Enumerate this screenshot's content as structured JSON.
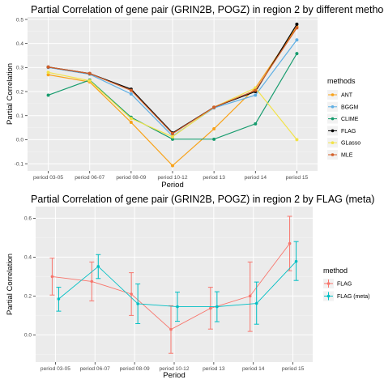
{
  "chart_data": [
    {
      "type": "line",
      "title": "Partial Correlation of gene pair (GRIN2B, POGZ) in region 2 by different methods",
      "xlabel": "Period",
      "ylabel": "Partial Correlation",
      "categories": [
        "period 03-05",
        "period 06-07",
        "period 08-09",
        "period 10-12",
        "period 13",
        "period 14",
        "period 15"
      ],
      "yticks": [
        "-0.1",
        "0.0",
        "0.1",
        "0.2",
        "0.3",
        "0.4",
        "0.5"
      ],
      "ylim": [
        -0.13,
        0.51
      ],
      "grid": true,
      "legend_title": "methods",
      "legend_position": "right",
      "series": [
        {
          "name": "ANT",
          "color": "#F8A31B",
          "values": [
            0.27,
            0.24,
            0.072,
            -0.108,
            0.045,
            0.215,
            0.47
          ]
        },
        {
          "name": "BGGM",
          "color": "#5FAFE4",
          "values": [
            0.3,
            0.272,
            0.19,
            0.015,
            0.132,
            0.185,
            0.415
          ]
        },
        {
          "name": "CLIME",
          "color": "#179C6E",
          "values": [
            0.185,
            0.248,
            0.093,
            0.002,
            0.002,
            0.066,
            0.358
          ]
        },
        {
          "name": "FLAG",
          "color": "#000000",
          "values": [
            0.302,
            0.275,
            0.21,
            0.028,
            0.135,
            0.2,
            0.48
          ]
        },
        {
          "name": "GLasso",
          "color": "#F2E34A",
          "values": [
            0.28,
            0.245,
            0.088,
            0.012,
            0.135,
            0.215,
            0.0
          ]
        },
        {
          "name": "MLE",
          "color": "#D3602A",
          "values": [
            0.302,
            0.275,
            0.205,
            0.025,
            0.135,
            0.205,
            0.465
          ]
        }
      ]
    },
    {
      "type": "line",
      "title": "Partial Correlation of gene pair (GRIN2B, POGZ) in region 2 by FLAG (meta)",
      "xlabel": "Period",
      "ylabel": "Partial Correlation",
      "categories": [
        "period 03-05",
        "period 06-07",
        "period 08-09",
        "period 10-12",
        "period 13",
        "period 14",
        "period 15"
      ],
      "yticks": [
        "0.0",
        "0.2",
        "0.4",
        "0.6"
      ],
      "ylim": [
        -0.14,
        0.66
      ],
      "grid": true,
      "error_bars": true,
      "legend_title": "method",
      "legend_position": "right",
      "series": [
        {
          "name": "FLAG",
          "color": "#F8766D",
          "values": [
            0.3,
            0.275,
            0.21,
            0.028,
            0.137,
            0.2,
            0.47
          ],
          "lower": [
            0.205,
            0.175,
            0.1,
            -0.095,
            0.03,
            0.018,
            0.33
          ],
          "upper": [
            0.395,
            0.375,
            0.32,
            0.15,
            0.245,
            0.375,
            0.61
          ]
        },
        {
          "name": "FLAG (meta)",
          "color": "#00BFC4",
          "values": [
            0.185,
            0.352,
            0.16,
            0.145,
            0.145,
            0.162,
            0.378
          ],
          "lower": [
            0.122,
            0.29,
            0.058,
            0.07,
            0.068,
            0.055,
            0.28
          ],
          "upper": [
            0.245,
            0.413,
            0.262,
            0.22,
            0.222,
            0.272,
            0.48
          ]
        }
      ]
    }
  ]
}
